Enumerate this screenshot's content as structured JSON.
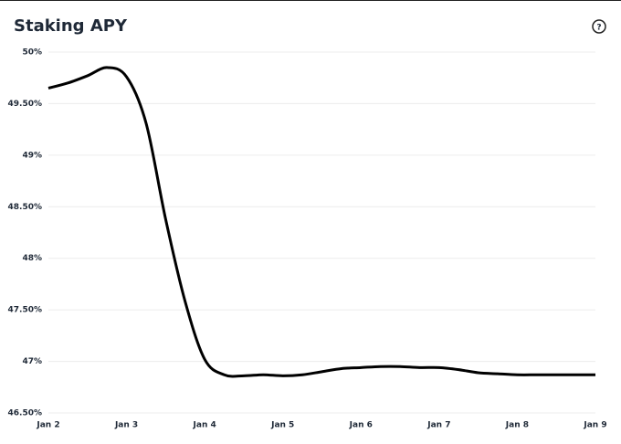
{
  "help_icon": "?",
  "chart_data": {
    "type": "line",
    "title": "Staking APY",
    "categories": [
      "Jan 2",
      null,
      null,
      null,
      "Jan 3",
      null,
      null,
      null,
      "Jan 4",
      null,
      null,
      null,
      "Jan 5",
      null,
      null,
      null,
      "Jan 6",
      null,
      null,
      null,
      "Jan 7",
      null,
      null,
      null,
      "Jan 8",
      null,
      null,
      null,
      "Jan 9"
    ],
    "values": [
      49.65,
      49.7,
      49.77,
      49.85,
      49.76,
      49.31,
      48.38,
      47.58,
      47.02,
      46.87,
      46.86,
      46.87,
      46.86,
      46.87,
      46.9,
      46.93,
      46.94,
      46.95,
      46.95,
      46.94,
      46.94,
      46.92,
      46.89,
      46.88,
      46.87,
      46.87,
      46.87,
      46.87,
      46.87
    ],
    "color": "#000000",
    "ylim": [
      46.5,
      50
    ],
    "yticks": [
      {
        "value": 46.5,
        "label": "46.50%"
      },
      {
        "value": 47,
        "label": "47%"
      },
      {
        "value": 47.5,
        "label": "47.50%"
      },
      {
        "value": 48,
        "label": "48%"
      },
      {
        "value": 48.5,
        "label": "48.50%"
      },
      {
        "value": 49,
        "label": "49%"
      },
      {
        "value": 49.5,
        "label": "49.50%"
      },
      {
        "value": 50,
        "label": "50%"
      }
    ],
    "grid": true
  }
}
